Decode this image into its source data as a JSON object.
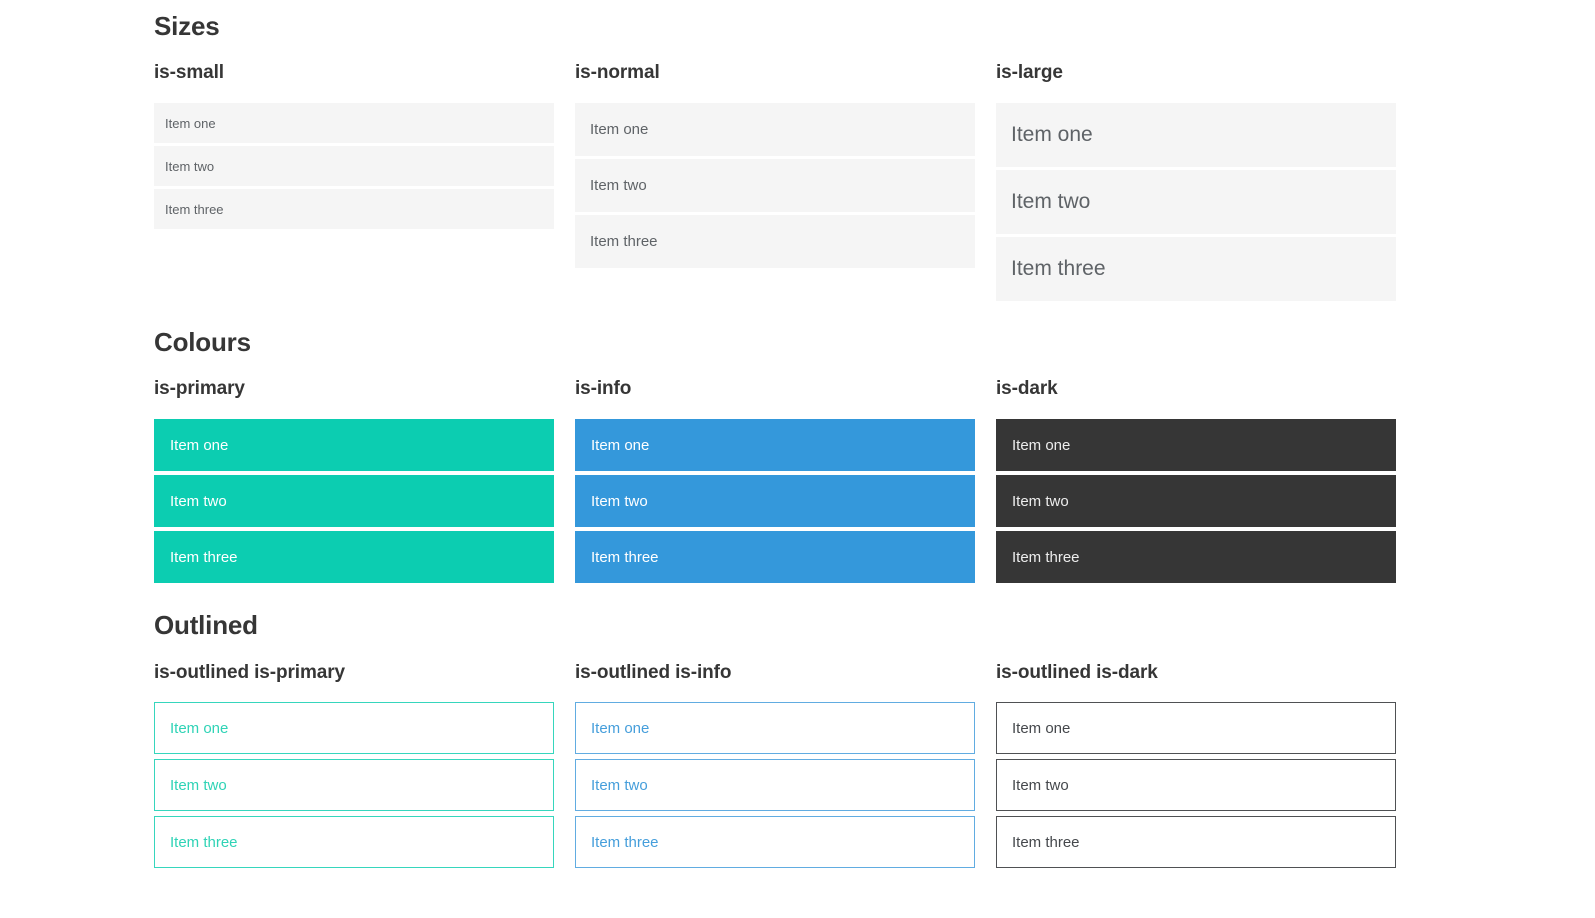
{
  "sections": [
    {
      "title": "Sizes",
      "groups": [
        {
          "label": "is-small",
          "items": [
            "Item one",
            "Item two",
            "Item three"
          ]
        },
        {
          "label": "is-normal",
          "items": [
            "Item one",
            "Item two",
            "Item three"
          ]
        },
        {
          "label": "is-large",
          "items": [
            "Item one",
            "Item two",
            "Item three"
          ]
        }
      ]
    },
    {
      "title": "Colours",
      "groups": [
        {
          "label": "is-primary",
          "items": [
            "Item one",
            "Item two",
            "Item three"
          ]
        },
        {
          "label": "is-info",
          "items": [
            "Item one",
            "Item two",
            "Item three"
          ]
        },
        {
          "label": "is-dark",
          "items": [
            "Item one",
            "Item two",
            "Item three"
          ]
        }
      ]
    },
    {
      "title": "Outlined",
      "groups": [
        {
          "label": "is-outlined is-primary",
          "items": [
            "Item one",
            "Item two",
            "Item three"
          ]
        },
        {
          "label": "is-outlined is-info",
          "items": [
            "Item one",
            "Item two",
            "Item three"
          ]
        },
        {
          "label": "is-outlined is-dark",
          "items": [
            "Item one",
            "Item two",
            "Item three"
          ]
        }
      ]
    }
  ],
  "colors": {
    "primary": "#0ccdb1",
    "info": "#3498db",
    "dark": "#363636",
    "item_bg": "#f5f5f5",
    "heading": "#363636",
    "muted": "#5f6367",
    "primary_border": "#36d6bd",
    "primary_text": "#2fd3b6",
    "info_border": "#61ace1",
    "info_text": "#459edb",
    "dark_border": "#4f5154",
    "dark_text": "#45484c",
    "white_text": "#ffffff",
    "dark_item_text": "#ededed"
  }
}
